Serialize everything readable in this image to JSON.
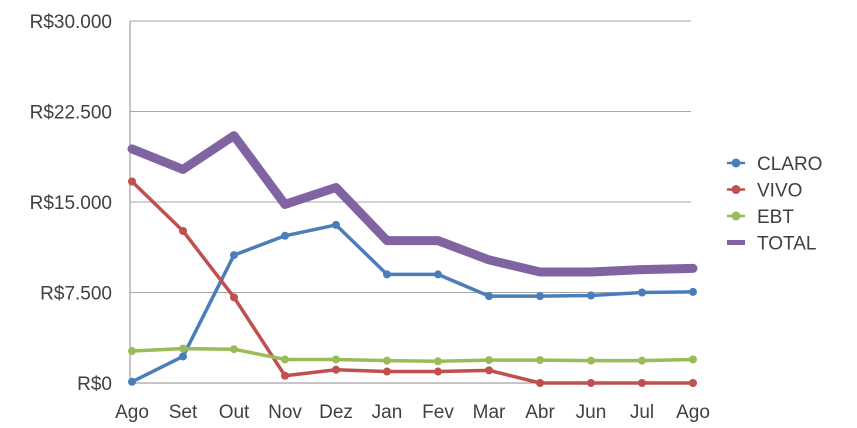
{
  "chart_data": {
    "type": "line",
    "title": "",
    "xlabel": "",
    "ylabel": "",
    "categories": [
      "Ago",
      "Set",
      "Out",
      "Nov",
      "Dez",
      "Jan",
      "Fev",
      "Mar",
      "Abr",
      "Jun",
      "Jul",
      "Ago"
    ],
    "ylim": [
      0,
      30000
    ],
    "yticks": [
      0,
      7500,
      15000,
      22500,
      30000
    ],
    "ytick_labels": [
      "R$0",
      "R$7.500",
      "R$15.000",
      "R$22.500",
      "R$30.000"
    ],
    "grid": true,
    "legend_position": "right",
    "series": [
      {
        "name": "CLARO",
        "color": "#4a7ebb",
        "values": [
          100,
          2200,
          10600,
          12200,
          13100,
          9000,
          9000,
          7200,
          7200,
          7250,
          7500,
          7550
        ]
      },
      {
        "name": "VIVO",
        "color": "#c0504d",
        "values": [
          16700,
          12600,
          7100,
          600,
          1100,
          950,
          950,
          1050,
          0,
          0,
          0,
          0
        ]
      },
      {
        "name": "EBT",
        "color": "#9bbb59",
        "values": [
          2650,
          2850,
          2800,
          1950,
          1950,
          1850,
          1800,
          1900,
          1900,
          1850,
          1850,
          1950
        ]
      },
      {
        "name": "TOTAL",
        "color": "#8064a2",
        "values": [
          19400,
          17700,
          20500,
          14800,
          16200,
          11800,
          11800,
          10200,
          9200,
          9200,
          9400,
          9500
        ]
      }
    ]
  }
}
